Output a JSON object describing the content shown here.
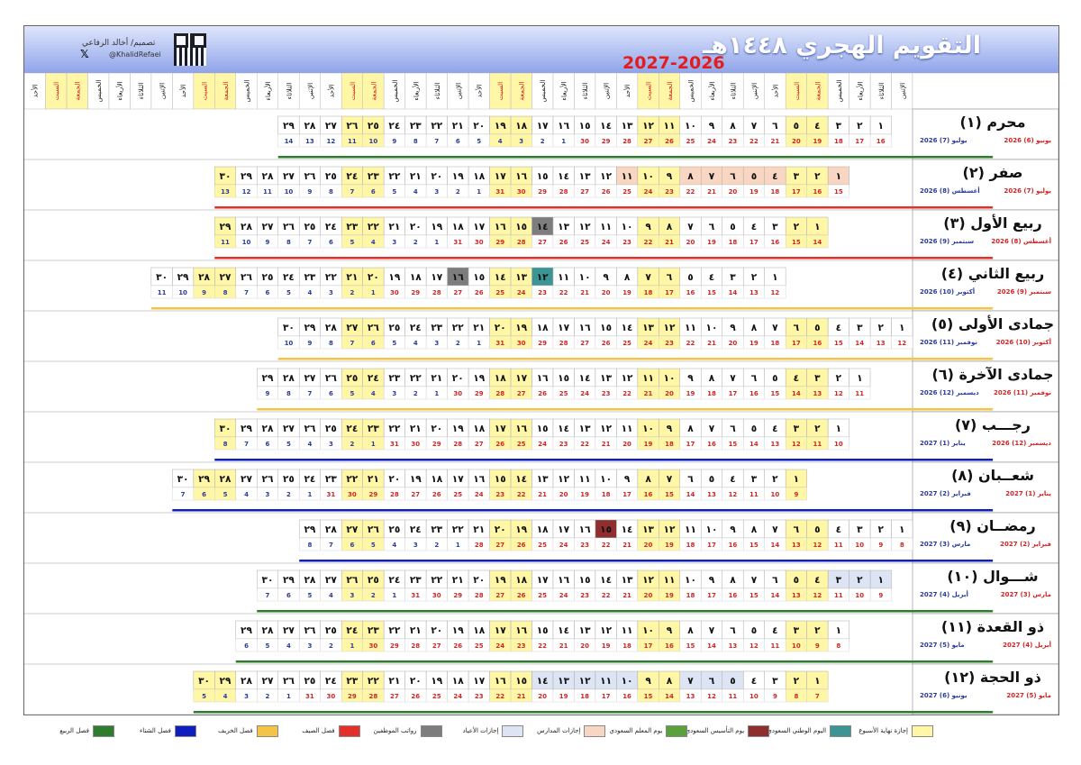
{
  "title": "التقويم الهجري ١٤٤٨هـ",
  "years": "2027-2026",
  "designer": "تصميم/ أخالد الرفاعي",
  "handle": "@KhalidRefaei",
  "weekdays": [
    "الإثنين",
    "الثلاثاء",
    "الأربعاء",
    "الخميس",
    "الجمعة",
    "السبت",
    "الأحد"
  ],
  "colors": {
    "weekend": "#fff6a6",
    "saudi_foundation": "#8e2e2e",
    "saudi_national": "#3c9494",
    "teacher_day": "#5aa03c",
    "vacation_staff": "#7d7d7d",
    "eid": "#dde4f4",
    "school": "#f8d6c2",
    "summer": "#e3302a",
    "autumn": "#f4c448",
    "winter": "#0f1fbf",
    "spring": "#2e7d2e"
  },
  "legend": [
    {
      "label": "إجازة نهاية الأسبوع",
      "color": "#fff6a6"
    },
    {
      "label": "اليوم الوطني السعودي",
      "color": "#3c9494"
    },
    {
      "label": "يوم التأسيس السعودي",
      "color": "#8e2e2e"
    },
    {
      "label": "يوم المعلم السعودي",
      "color": "#5aa03c"
    },
    {
      "label": "إجازات المدارس",
      "color": "#f8d6c2"
    },
    {
      "label": "إجازات الأعياد",
      "color": "#dde4f4"
    },
    {
      "label": "رواتب الموظفين",
      "color": "#7d7d7d"
    },
    {
      "label": "فصل الصيف",
      "color": "#e3302a"
    },
    {
      "label": "فصل الخريف",
      "color": "#f4c448"
    },
    {
      "label": "فصل الشتاء",
      "color": "#0f1fbf"
    },
    {
      "label": "فصل الربيع",
      "color": "#2e7d2e"
    }
  ],
  "months": [
    {
      "name": "محرم (١)",
      "offset": 0,
      "days": 29,
      "g_start": 16,
      "g_prev_len": 30,
      "g_label_a": "يونيو (6) 2026",
      "g_label_b": "يوليو (7) 2026",
      "season": "#2e7d2e"
    },
    {
      "name": "صفر (٢)",
      "offset": 0,
      "days": 30,
      "g_start": 15,
      "g_prev_len": 31,
      "g_label_a": "يوليو (7) 2026",
      "g_label_b": "أغسطس (8) 2026",
      "season": "#e3302a"
    },
    {
      "name": "ربيع الأول (٣)",
      "offset": 0,
      "days": 29,
      "g_start": 14,
      "g_prev_len": 31,
      "g_label_a": "أغسطس (8) 2026",
      "g_label_b": "سبتمبر (9) 2026",
      "season": "#e3302a"
    },
    {
      "name": "ربيع الثاني (٤)",
      "offset": 0,
      "days": 30,
      "g_start": 12,
      "g_prev_len": 30,
      "g_label_a": "سبتمبر (9) 2026",
      "g_label_b": "أكتوبر (10) 2026",
      "season": "#f4c448"
    },
    {
      "name": "جمادى الأولى (٥)",
      "offset": 0,
      "days": 30,
      "g_start": 12,
      "g_prev_len": 31,
      "g_label_a": "أكتوبر (10) 2026",
      "g_label_b": "نوفمبر (11) 2026",
      "season": "#f4c448"
    },
    {
      "name": "جمادى الآخرة (٦)",
      "offset": 0,
      "days": 29,
      "g_start": 11,
      "g_prev_len": 30,
      "g_label_a": "نوفمبر (11) 2026",
      "g_label_b": "ديسمبر (12) 2026",
      "season": "#f4c448"
    },
    {
      "name": "رجـــب (٧)",
      "offset": 0,
      "days": 30,
      "g_start": 10,
      "g_prev_len": 31,
      "g_label_a": "ديسمبر (12) 2026",
      "g_label_b": "يناير (1) 2027",
      "season": "#0f1fbf"
    },
    {
      "name": "شعــبان (٨)",
      "offset": 0,
      "days": 30,
      "g_start": 9,
      "g_prev_len": 31,
      "g_label_a": "يناير (1) 2027",
      "g_label_b": "فبراير (2) 2027",
      "season": "#0f1fbf"
    },
    {
      "name": "رمضــان (٩)",
      "offset": 0,
      "days": 29,
      "g_start": 8,
      "g_prev_len": 28,
      "g_label_a": "فبراير (2) 2027",
      "g_label_b": "مارس (3) 2027",
      "season": "#0f1fbf"
    },
    {
      "name": "شـــوال (١٠)",
      "offset": 0,
      "days": 30,
      "g_start": 9,
      "g_prev_len": 31,
      "g_label_a": "مارس (3) 2027",
      "g_label_b": "أبريل (4) 2027",
      "season": "#2e7d2e"
    },
    {
      "name": "ذو القعدة (١١)",
      "offset": 0,
      "days": 29,
      "g_start": 8,
      "g_prev_len": 30,
      "g_label_a": "أبريل (4) 2027",
      "g_label_b": "مايو (5) 2027",
      "season": "#2e7d2e"
    },
    {
      "name": "ذو الحجة (١٢)",
      "offset": 0,
      "days": 30,
      "g_start": 7,
      "g_prev_len": 31,
      "g_label_a": "مايو (5) 2027",
      "g_label_b": "يونيو (6) 2027",
      "season": "#2e7d2e"
    }
  ]
}
